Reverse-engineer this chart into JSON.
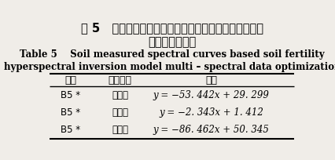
{
  "title_zh_line1": "表 5   基于土壤实测光谱曲线土壤肥力高光谱反演模型的",
  "title_zh_line2": "多光谱数据优化",
  "title_en_line1": "Table 5    Soil measured spectral curves based soil fertility",
  "title_en_line2": "hyperspectral inversion model multi – spectral data optimization",
  "col_headers": [
    "波段",
    "肥力参数",
    "模型"
  ],
  "rows": [
    [
      "B5 *",
      "有机质",
      "y = −53. 442x + 29. 299"
    ],
    [
      "B5 *",
      "有效钾",
      "y = −2. 343x + 1. 412"
    ],
    [
      "B5 *",
      "有效磷",
      "y = −86. 462x + 50. 345"
    ]
  ],
  "bg_color": "#f0ede8",
  "text_color": "#000000",
  "title_zh_fontsize": 10.5,
  "title_en_fontsize": 8.5,
  "header_fontsize": 9,
  "cell_fontsize": 8.5
}
